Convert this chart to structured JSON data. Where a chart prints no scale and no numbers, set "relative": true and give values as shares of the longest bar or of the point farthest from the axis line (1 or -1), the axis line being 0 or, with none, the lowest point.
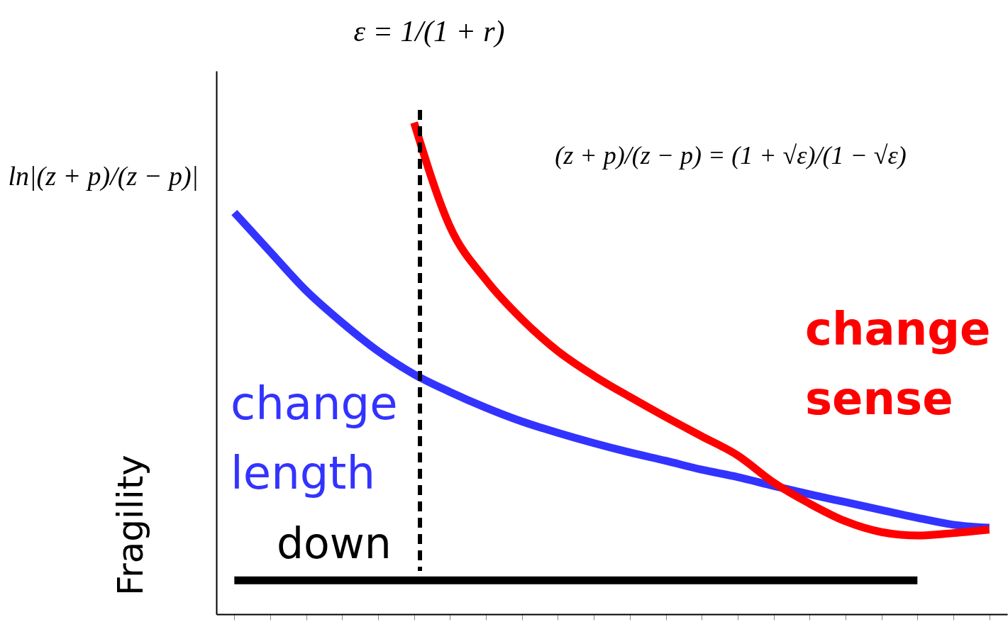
{
  "chart_data": {
    "type": "line",
    "relative": true,
    "ylabel": "Fragility",
    "tick_labels": false,
    "grid": false,
    "categories": [
      null,
      null,
      null,
      null,
      null,
      null,
      null,
      null,
      null,
      null,
      null,
      null,
      null,
      null,
      null,
      null,
      null,
      null,
      null,
      null,
      null,
      null
    ],
    "series": [
      {
        "name": "change length",
        "color": "#3333ff",
        "values": [
          0.817,
          0.737,
          0.658,
          0.593,
          0.535,
          0.488,
          0.452,
          0.42,
          0.392,
          0.369,
          0.348,
          0.329,
          0.312,
          0.294,
          0.279,
          0.261,
          0.244,
          0.228,
          0.212,
          0.196,
          0.182,
          0.176
        ]
      },
      {
        "name": "change sense",
        "color": "#ff0000",
        "values": [
          null,
          null,
          null,
          null,
          null,
          1.0,
          0.788,
          0.68,
          0.6,
          0.535,
          0.485,
          0.442,
          0.401,
          0.362,
          0.323,
          0.268,
          0.225,
          0.189,
          0.167,
          0.16,
          0.165,
          0.172
        ]
      },
      {
        "name": "down",
        "color": "#000000",
        "values": [
          0.069,
          0.069,
          0.069,
          0.069,
          0.069,
          0.069,
          0.069,
          0.069,
          0.069,
          0.069,
          0.069,
          0.069,
          0.069,
          0.069,
          0.069,
          0.069,
          0.069,
          0.069,
          0.069,
          0.069,
          null,
          null
        ]
      }
    ],
    "annotations": [
      "ε = 1/(1 + r)",
      "ln|(z + p)/(z − p)|",
      "(z + p)/(z − p) = (1 + √ε)/(1 − √ε)"
    ]
  }
}
